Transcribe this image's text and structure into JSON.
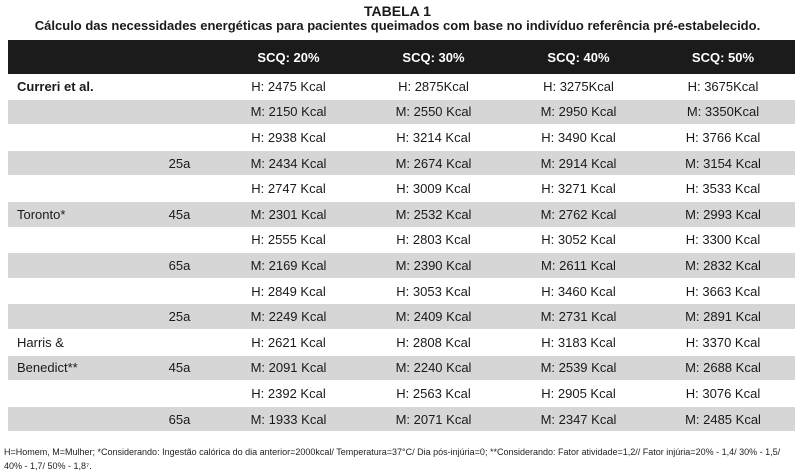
{
  "title": "TABELA 1",
  "subtitle": "Cálculo das necessidades energéticas para pacientes queimados com base no indivíduo referência pré-estabelecido.",
  "columns": [
    "",
    "",
    "SCQ: 20%",
    "SCQ: 30%",
    "SCQ: 40%",
    "SCQ: 50%"
  ],
  "rows": [
    {
      "label": "Curreri et al.",
      "age": "",
      "v1": "H: 2475 Kcal",
      "v2": "H: 2875Kcal",
      "v3": "H: 3275Kcal",
      "v4": "H: 3675Kcal"
    },
    {
      "label": "",
      "age": "",
      "v1": "M: 2150 Kcal",
      "v2": "M: 2550 Kcal",
      "v3": "M: 2950 Kcal",
      "v4": "M: 3350Kcal"
    },
    {
      "label": "",
      "age": "",
      "v1": "H: 2938 Kcal",
      "v2": "H: 3214 Kcal",
      "v3": "H: 3490 Kcal",
      "v4": "H: 3766 Kcal"
    },
    {
      "label": "",
      "age": "25a",
      "v1": "M: 2434 Kcal",
      "v2": "M: 2674 Kcal",
      "v3": "M: 2914 Kcal",
      "v4": "M: 3154 Kcal"
    },
    {
      "label": "",
      "age": "",
      "v1": "H: 2747 Kcal",
      "v2": "H: 3009 Kcal",
      "v3": "H: 3271 Kcal",
      "v4": "H: 3533 Kcal"
    },
    {
      "label": "Toronto*",
      "age": "45a",
      "v1": "M: 2301 Kcal",
      "v2": "M: 2532 Kcal",
      "v3": "M: 2762 Kcal",
      "v4": "M: 2993 Kcal"
    },
    {
      "label": "",
      "age": "",
      "v1": "H: 2555 Kcal",
      "v2": "H: 2803 Kcal",
      "v3": "H: 3052 Kcal",
      "v4": "H: 3300 Kcal"
    },
    {
      "label": "",
      "age": "65a",
      "v1": "M: 2169 Kcal",
      "v2": "M: 2390 Kcal",
      "v3": "M: 2611 Kcal",
      "v4": "M: 2832 Kcal"
    },
    {
      "label": "",
      "age": "",
      "v1": "H: 2849 Kcal",
      "v2": "H: 3053 Kcal",
      "v3": "H: 3460 Kcal",
      "v4": "H: 3663 Kcal"
    },
    {
      "label": "",
      "age": "25a",
      "v1": "M: 2249 Kcal",
      "v2": "M: 2409 Kcal",
      "v3": "M: 2731 Kcal",
      "v4": "M: 2891 Kcal"
    },
    {
      "label": "Harris &",
      "age": "",
      "v1": "H: 2621 Kcal",
      "v2": "H: 2808 Kcal",
      "v3": "H: 3183 Kcal",
      "v4": "H: 3370 Kcal"
    },
    {
      "label": "Benedict**",
      "age": "45a",
      "v1": "M: 2091 Kcal",
      "v2": "M: 2240 Kcal",
      "v3": "M: 2539 Kcal",
      "v4": "M: 2688 Kcal"
    },
    {
      "label": "",
      "age": "",
      "v1": "H: 2392 Kcal",
      "v2": "H: 2563 Kcal",
      "v3": "H: 2905 Kcal",
      "v4": "H: 3076 Kcal"
    },
    {
      "label": "",
      "age": "65a",
      "v1": "M: 1933 Kcal",
      "v2": "M: 2071 Kcal",
      "v3": "M: 2347 Kcal",
      "v4": "M: 2485 Kcal"
    }
  ],
  "footnote": "H=Homem, M=Mulher; *Considerando: Ingestão calórica do dia anterior=2000kcal/ Temperatura=37°C/ Dia pós-injúria=0; **Considerando: Fator atividade=1,2// Fator injúria=20% - 1,4/ 30% - 1,5/ 40% - 1,7/ 50% - 1,8⁷.",
  "colors": {
    "header_bg": "#1b1b1b",
    "header_text": "#ffffff",
    "shade_row": "#d6d6d6",
    "text": "#1a1a1a"
  }
}
